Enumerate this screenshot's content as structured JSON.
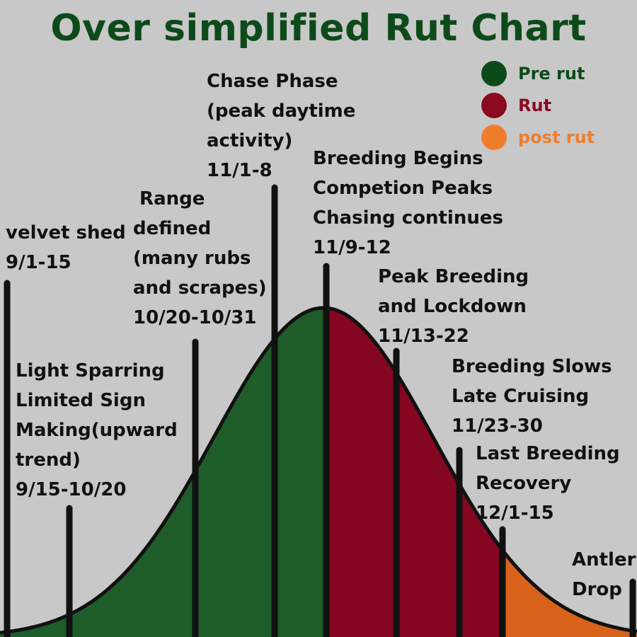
{
  "title": "Over simplified Rut Chart",
  "legend": [
    {
      "label": "Pre rut",
      "color": "#0d4a1a"
    },
    {
      "label": "Rut",
      "color": "#8b0a1f"
    },
    {
      "label": "post rut",
      "color": "#f07d2c"
    }
  ],
  "phase_colors": {
    "pre_rut": "#1e5c2a",
    "rut": "#840620",
    "post_rut": "#d8621a",
    "outline": "#111111"
  },
  "phases": [
    {
      "id": "velvet-shed",
      "text": "velvet shed\n9/1-15"
    },
    {
      "id": "light-sparring",
      "text": "Light Sparring\nLimited Sign\nMaking(upward\ntrend)\n9/15-10/20"
    },
    {
      "id": "range-defined",
      "text": " Range\ndefined\n(many rubs\nand scrapes)\n10/20-10/31"
    },
    {
      "id": "chase-phase",
      "text": "Chase Phase\n(peak daytime\nactivity)\n11/1-8"
    },
    {
      "id": "breeding-begins",
      "text": "Breeding Begins\nCompetion Peaks\nChasing continues\n11/9-12"
    },
    {
      "id": "peak-breeding",
      "text": "Peak Breeding\nand Lockdown\n11/13-22"
    },
    {
      "id": "breeding-slows",
      "text": "Breeding Slows\nLate Cruising\n11/23-30"
    },
    {
      "id": "last-breeding",
      "text": "Last Breeding\nRecovery\n12/1-15"
    },
    {
      "id": "antler-drop",
      "text": "Antler\nDrop"
    }
  ]
}
